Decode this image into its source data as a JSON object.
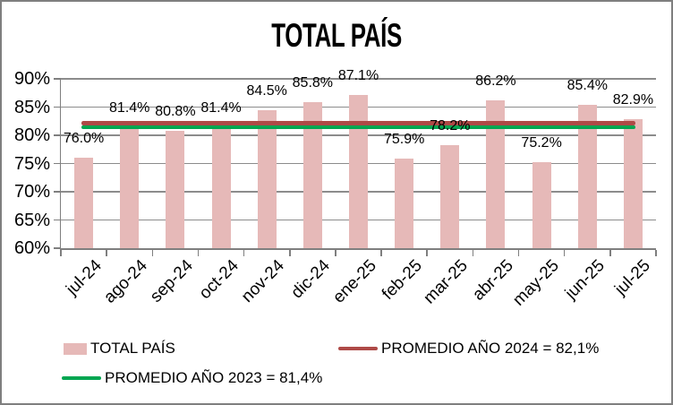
{
  "window": {
    "background_color": "#FFFFFF",
    "border_color": "#7F7F7F"
  },
  "chart_data": {
    "type": "bar",
    "title": "TOTAL PAÍS",
    "categories": [
      "jul-24",
      "ago-24",
      "sep-24",
      "oct-24",
      "nov-24",
      "dic-24",
      "ene-25",
      "feb-25",
      "mar-25",
      "abr-25",
      "may-25",
      "jun-25",
      "jul-25"
    ],
    "series": [
      {
        "name": "TOTAL PAÍS",
        "values": [
          76.0,
          81.4,
          80.8,
          81.4,
          84.5,
          85.8,
          87.1,
          75.9,
          78.2,
          86.2,
          75.2,
          85.4,
          82.9
        ],
        "color": "#E6B9B8"
      }
    ],
    "value_labels": [
      "76.0%",
      "81.4%",
      "80.8%",
      "81.4%",
      "84.5%",
      "85.8%",
      "87.1%",
      "75.9%",
      "78.2%",
      "86.2%",
      "75.2%",
      "85.4%",
      "82.9%"
    ],
    "reference_lines": [
      {
        "label": "PROMEDIO AÑO 2024 = 82,1%",
        "value": 82.1,
        "color": "#AE4A47"
      },
      {
        "label": "PROMEDIO AÑO 2023 = 81,4%",
        "value": 81.4,
        "color": "#00A651"
      }
    ],
    "xlabel": "",
    "ylabel": "",
    "ylim": [
      60,
      90
    ],
    "ytick_step": 5,
    "ytick_labels": [
      "60%",
      "65%",
      "70%",
      "75%",
      "80%",
      "85%",
      "90%"
    ],
    "grid": true,
    "gridline_color": "#8C8C8C",
    "axis_color": "#7F7F7F",
    "legend_position": "bottom"
  }
}
